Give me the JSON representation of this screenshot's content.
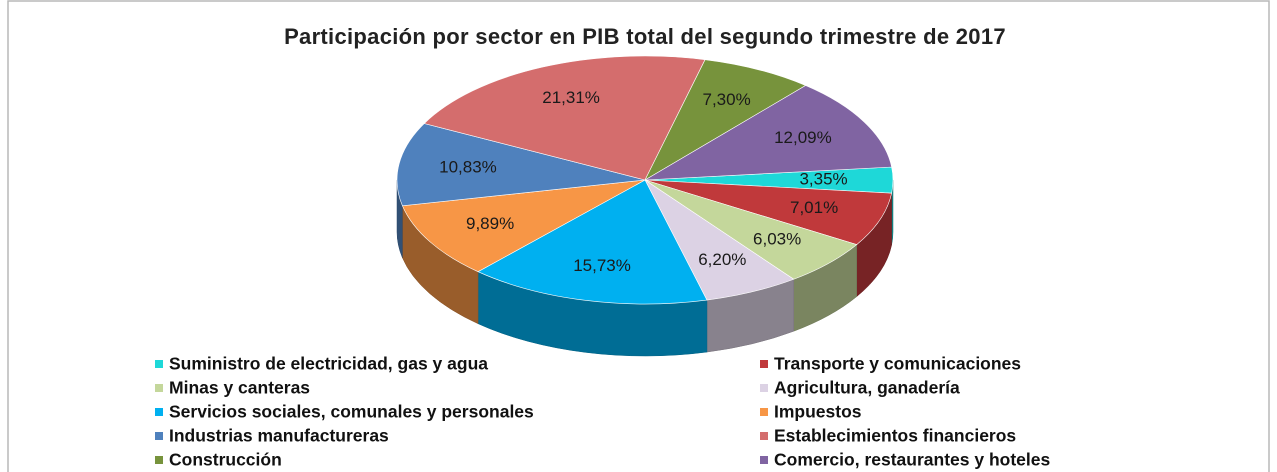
{
  "chart_data": {
    "type": "pie",
    "title": "Participación  por sector en PIB total del segundo  trimestre  de 2017",
    "categories": [
      "Suministro de electricidad, gas y agua",
      "Transporte y comunicaciones",
      "Minas y canteras",
      "Agricultura, ganadería",
      "Servicios sociales, comunales y personales",
      "Impuestos",
      "Industrias manufactureras",
      "Establecimientos financieros",
      "Construcción",
      "Comercio, restaurantes y hoteles"
    ],
    "values": [
      3.35,
      7.01,
      6.03,
      6.2,
      15.73,
      9.89,
      10.83,
      21.31,
      7.3,
      12.09
    ],
    "value_labels": [
      "3,35%",
      "7,01%",
      "6,03%",
      "6,20%",
      "15,73%",
      "9,89%",
      "10,83%",
      "21,31%",
      "7,30%",
      "12,09%"
    ],
    "colors": [
      "#1ed8d8",
      "#c0393b",
      "#c4d79b",
      "#dcd2e4",
      "#00b0f0",
      "#f79646",
      "#4f81bd",
      "#d46d6d",
      "#77933c",
      "#8064a2"
    ],
    "legend_position": "bottom"
  }
}
